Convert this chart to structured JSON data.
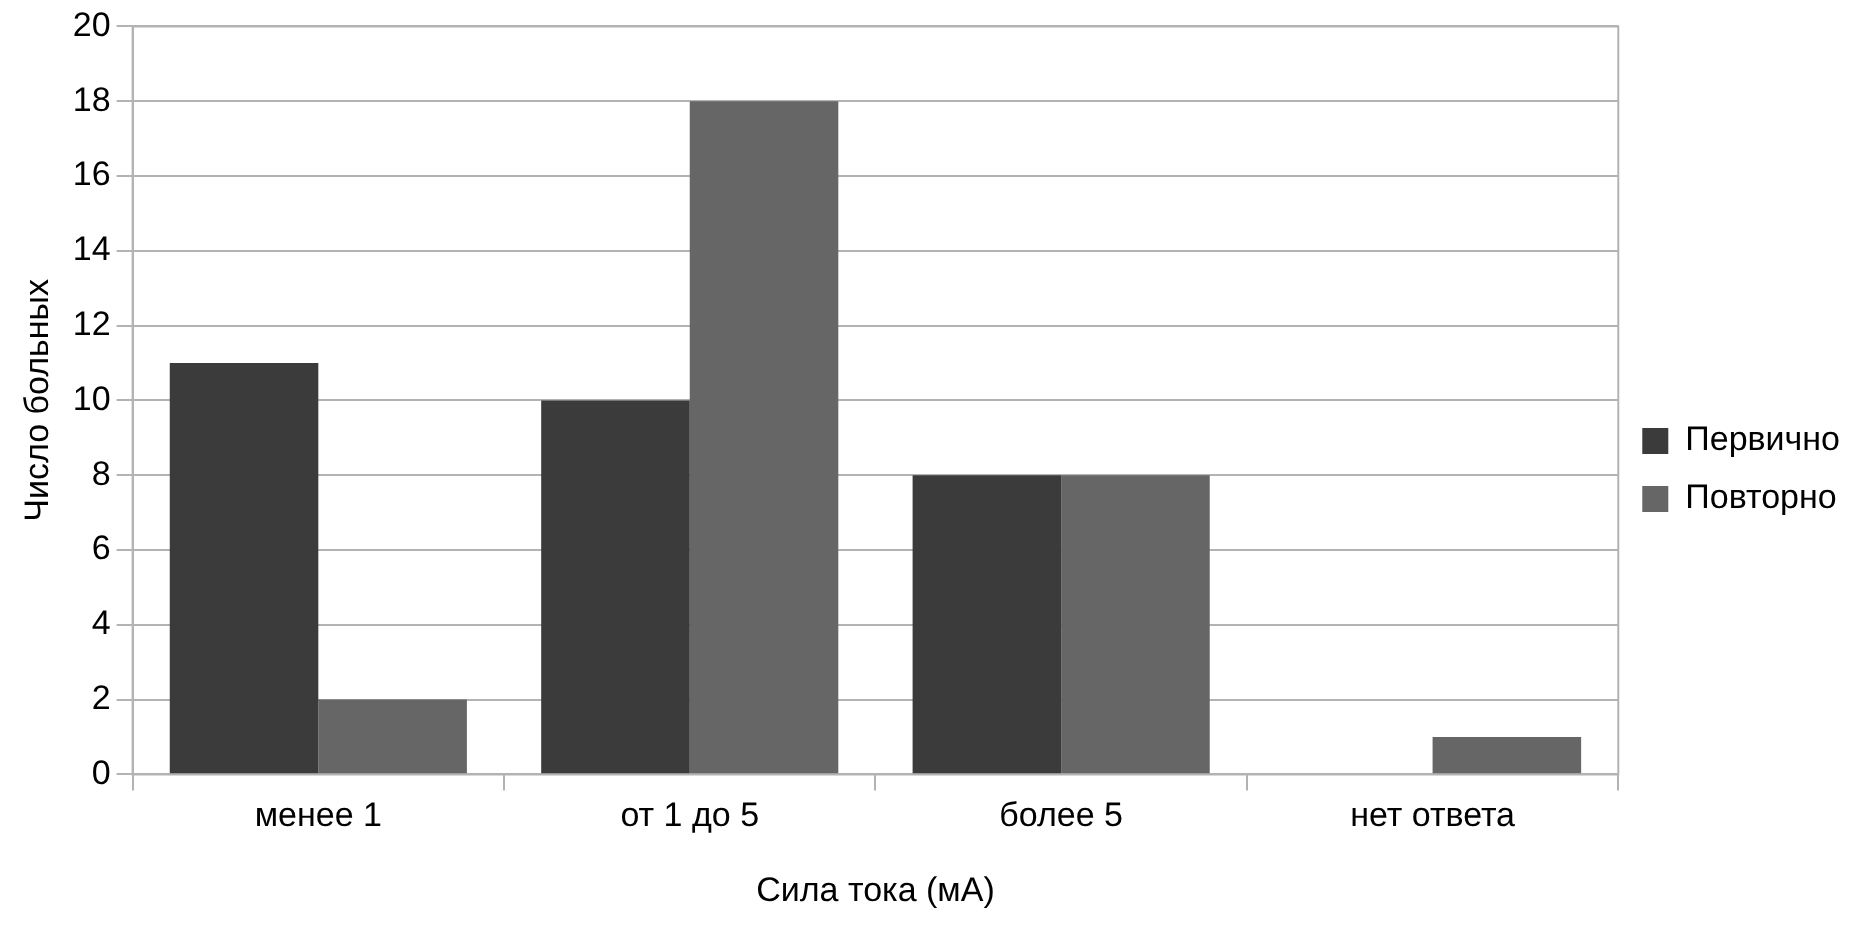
{
  "chart_data": {
    "type": "bar",
    "xlabel": "Сила тока (мА)",
    "ylabel": "Число больных",
    "categories": [
      "менее 1",
      "от 1 до 5",
      "более 5",
      "нет ответа"
    ],
    "series": [
      {
        "name": "Первично",
        "color": "#3b3b3b",
        "values": [
          11,
          10,
          8,
          0
        ]
      },
      {
        "name": "Повторно",
        "color": "#666666",
        "values": [
          2,
          18,
          8,
          1
        ]
      }
    ],
    "ylim": [
      0,
      20
    ],
    "yticks": [
      0,
      2,
      4,
      6,
      8,
      10,
      12,
      14,
      16,
      18,
      20
    ],
    "grid": "y",
    "legend": "right"
  }
}
